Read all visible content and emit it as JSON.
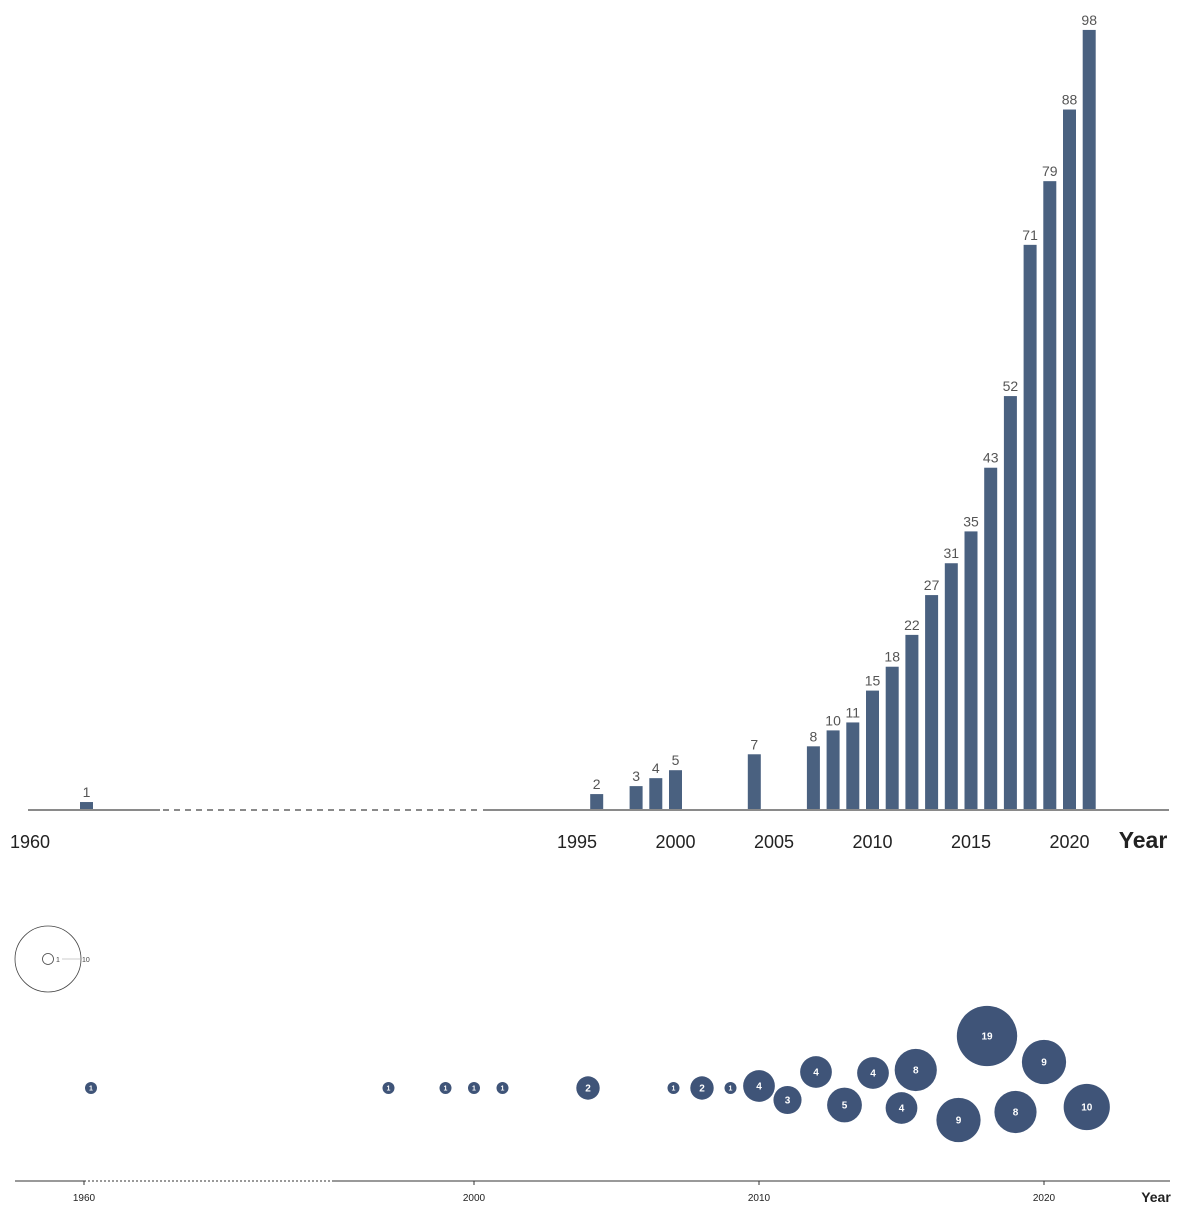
{
  "colors": {
    "bar": "#4a6180",
    "bubble": "#3f5478",
    "axis": "#8a8a8a",
    "label": "#555555",
    "text": "#222222"
  },
  "chart_data": [
    {
      "type": "bar",
      "x": [
        1961,
        1996,
        1998,
        1999,
        2000,
        2004,
        2007,
        2008,
        2009,
        2010,
        2011,
        2012,
        2013,
        2014,
        2015,
        2016,
        2017,
        2018,
        2019,
        2020,
        2021
      ],
      "values": [
        1,
        2,
        3,
        4,
        5,
        7,
        8,
        10,
        11,
        15,
        18,
        22,
        27,
        31,
        35,
        43,
        52,
        71,
        79,
        88,
        98
      ],
      "xlabel": "Year",
      "ylabel": "",
      "ylim": [
        0,
        98
      ],
      "xticks": [
        "1960",
        "1995",
        "2000",
        "2005",
        "2010",
        "2015",
        "2020"
      ],
      "axis_break": "dashed segment between 1960 and 1995",
      "grid": false
    },
    {
      "type": "scatter",
      "encoding": "bubble",
      "xlabel": "Year",
      "xticks": [
        "1960",
        "2000",
        "2010",
        "2020"
      ],
      "axis_break": "dotted segment after 1960",
      "size_legend": {
        "min": "1",
        "max": "10",
        "position": "top-left"
      },
      "points": [
        {
          "x": 1961,
          "size": 1
        },
        {
          "x": 1997,
          "size": 1
        },
        {
          "x": 1999,
          "size": 1
        },
        {
          "x": 2000,
          "size": 1
        },
        {
          "x": 2001,
          "size": 1
        },
        {
          "x": 2004,
          "size": 2
        },
        {
          "x": 2007,
          "size": 1
        },
        {
          "x": 2008,
          "size": 2
        },
        {
          "x": 2009,
          "size": 1
        },
        {
          "x": 2010,
          "size": 4
        },
        {
          "x": 2011,
          "size": 3
        },
        {
          "x": 2012,
          "size": 4
        },
        {
          "x": 2013,
          "size": 5
        },
        {
          "x": 2014,
          "size": 4
        },
        {
          "x": 2015,
          "size": 4
        },
        {
          "x": 2015.5,
          "size": 8
        },
        {
          "x": 2017,
          "size": 9
        },
        {
          "x": 2018,
          "size": 19
        },
        {
          "x": 2019,
          "size": 8
        },
        {
          "x": 2020,
          "size": 9
        },
        {
          "x": 2021.5,
          "size": 10
        }
      ]
    }
  ]
}
